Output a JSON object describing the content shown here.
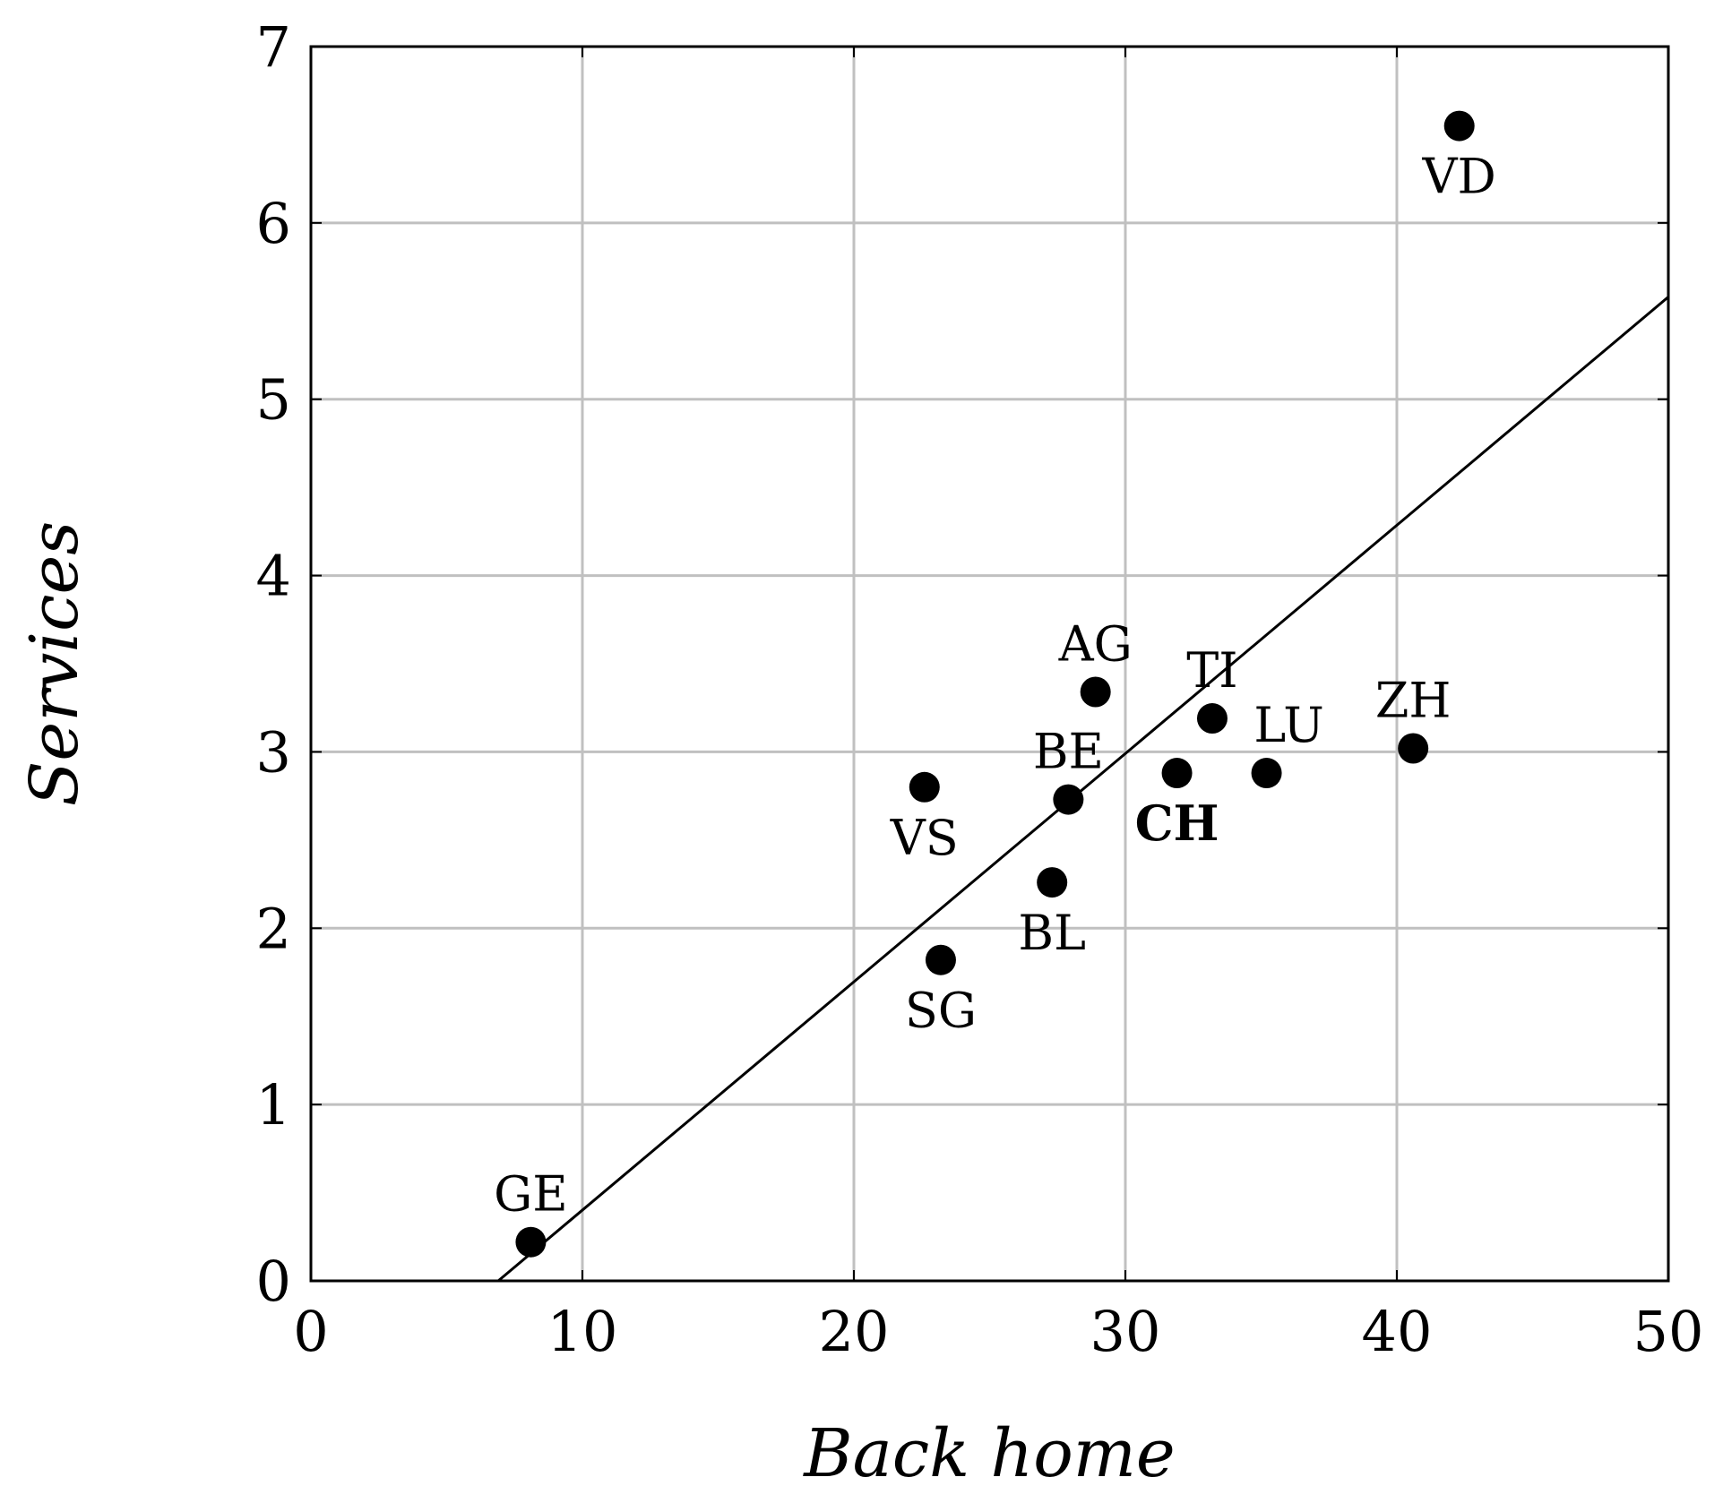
{
  "chart_data": {
    "type": "scatter",
    "title": "",
    "xlabel": "Back home",
    "ylabel": "Services",
    "xlim": [
      0,
      50
    ],
    "ylim": [
      0,
      7
    ],
    "xticks": [
      "0",
      "10",
      "20",
      "30",
      "40",
      "50"
    ],
    "yticks": [
      "0",
      "1",
      "2",
      "3",
      "4",
      "5",
      "6",
      "7"
    ],
    "grid": true,
    "points": [
      {
        "label": "GE",
        "x": 8.1,
        "y": 0.22,
        "label_pos": "above",
        "bold": false
      },
      {
        "label": "SG",
        "x": 23.2,
        "y": 1.82,
        "label_pos": "below",
        "bold": false
      },
      {
        "label": "VS",
        "x": 22.6,
        "y": 2.8,
        "label_pos": "below",
        "bold": false
      },
      {
        "label": "BL",
        "x": 27.3,
        "y": 2.26,
        "label_pos": "below",
        "bold": false
      },
      {
        "label": "BE",
        "x": 27.9,
        "y": 2.73,
        "label_pos": "above",
        "bold": false
      },
      {
        "label": "AG",
        "x": 28.9,
        "y": 3.34,
        "label_pos": "above",
        "bold": false
      },
      {
        "label": "CH",
        "x": 31.9,
        "y": 2.88,
        "label_pos": "below",
        "bold": true
      },
      {
        "label": "TI",
        "x": 33.2,
        "y": 3.19,
        "label_pos": "above",
        "bold": false
      },
      {
        "label": "LU",
        "x": 35.2,
        "y": 2.88,
        "label_pos": "above-right",
        "bold": false
      },
      {
        "label": "ZH",
        "x": 40.6,
        "y": 3.02,
        "label_pos": "above",
        "bold": false
      },
      {
        "label": "VD",
        "x": 42.3,
        "y": 6.55,
        "label_pos": "below",
        "bold": false
      }
    ],
    "fit_line": {
      "x": [
        6.9,
        50
      ],
      "y": [
        0,
        5.58
      ]
    }
  }
}
